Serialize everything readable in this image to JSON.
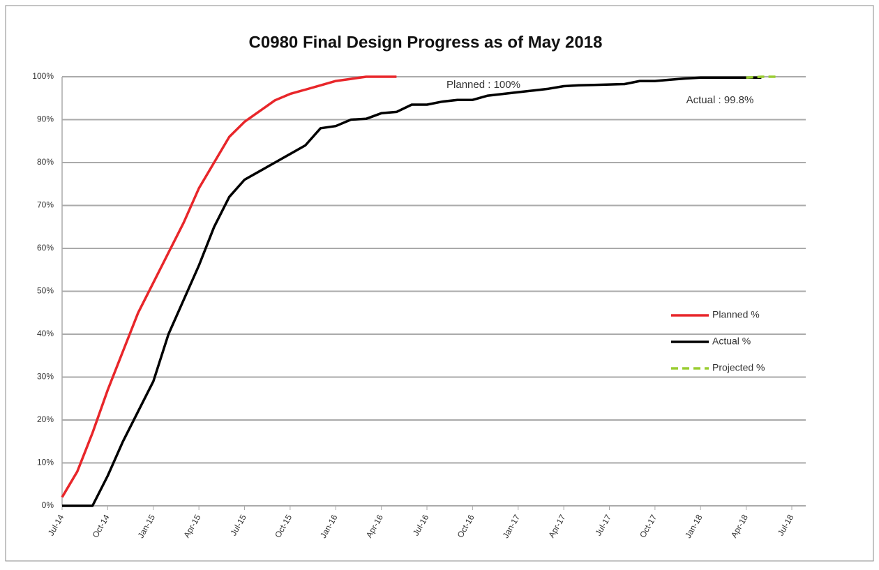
{
  "chart_data": {
    "type": "line",
    "title": "C0980 Final Design Progress as of May 2018",
    "categories": [
      "Jul-14",
      null,
      null,
      "Oct-14",
      null,
      null,
      "Jan-15",
      null,
      null,
      "Apr-15",
      null,
      null,
      "Jul-15",
      null,
      null,
      "Oct-15",
      null,
      null,
      "Jan-16",
      null,
      null,
      "Apr-16",
      null,
      null,
      "Jul-16",
      null,
      null,
      "Oct-16",
      null,
      null,
      "Jan-17",
      null,
      null,
      "Apr-17",
      null,
      null,
      "Jul-17",
      null,
      null,
      "Oct-17",
      null,
      null,
      "Jan-18",
      null,
      null,
      "Apr-18",
      null,
      null,
      "Jul-18"
    ],
    "series": [
      {
        "name": "Planned %",
        "color": "#e8262a",
        "dashed": false,
        "values": [
          2,
          8,
          17,
          27,
          36,
          45,
          52,
          59,
          66,
          74,
          80,
          86,
          89.5,
          92,
          94.5,
          96,
          97,
          98,
          99,
          99.5,
          100,
          100,
          100,
          null,
          null,
          null,
          null,
          null,
          null,
          null,
          null,
          null,
          null,
          null,
          null,
          null,
          null,
          null,
          null,
          null,
          null,
          null,
          null,
          null,
          null,
          null,
          null,
          null,
          null
        ]
      },
      {
        "name": "Actual %",
        "color": "#000000",
        "dashed": false,
        "values": [
          0,
          0,
          0,
          7,
          15,
          22,
          29,
          40,
          48,
          56,
          65,
          72,
          76,
          78,
          80,
          82,
          84,
          88,
          88.5,
          90,
          90.2,
          91.5,
          91.8,
          93.5,
          93.5,
          94.2,
          94.6,
          94.6,
          95.6,
          96,
          96.4,
          96.8,
          97.2,
          97.8,
          98,
          98.1,
          98.2,
          98.3,
          99,
          99,
          99.3,
          99.6,
          99.8,
          99.8,
          99.8,
          99.8,
          99.8,
          null,
          null
        ]
      },
      {
        "name": "Projected %",
        "color": "#9acd32",
        "dashed": true,
        "values": [
          null,
          null,
          null,
          null,
          null,
          null,
          null,
          null,
          null,
          null,
          null,
          null,
          null,
          null,
          null,
          null,
          null,
          null,
          null,
          null,
          null,
          null,
          null,
          null,
          null,
          null,
          null,
          null,
          null,
          null,
          null,
          null,
          null,
          null,
          null,
          null,
          null,
          null,
          null,
          null,
          null,
          null,
          null,
          null,
          null,
          99.8,
          100,
          100,
          null
        ]
      }
    ],
    "ylim": [
      0,
      100
    ],
    "yticks": [
      {
        "value": 0,
        "label": "0%"
      },
      {
        "value": 10,
        "label": "10%"
      },
      {
        "value": 20,
        "label": "20%"
      },
      {
        "value": 30,
        "label": "30%"
      },
      {
        "value": 40,
        "label": "40%"
      },
      {
        "value": 50,
        "label": "50%"
      },
      {
        "value": 60,
        "label": "60%"
      },
      {
        "value": 70,
        "label": "70%"
      },
      {
        "value": 80,
        "label": "80%"
      },
      {
        "value": 90,
        "label": "90%"
      },
      {
        "value": 100,
        "label": "100%"
      }
    ],
    "grid": true,
    "legend": "right",
    "annotations": [
      "Planned : 100%",
      "Actual : 99.8%"
    ]
  }
}
